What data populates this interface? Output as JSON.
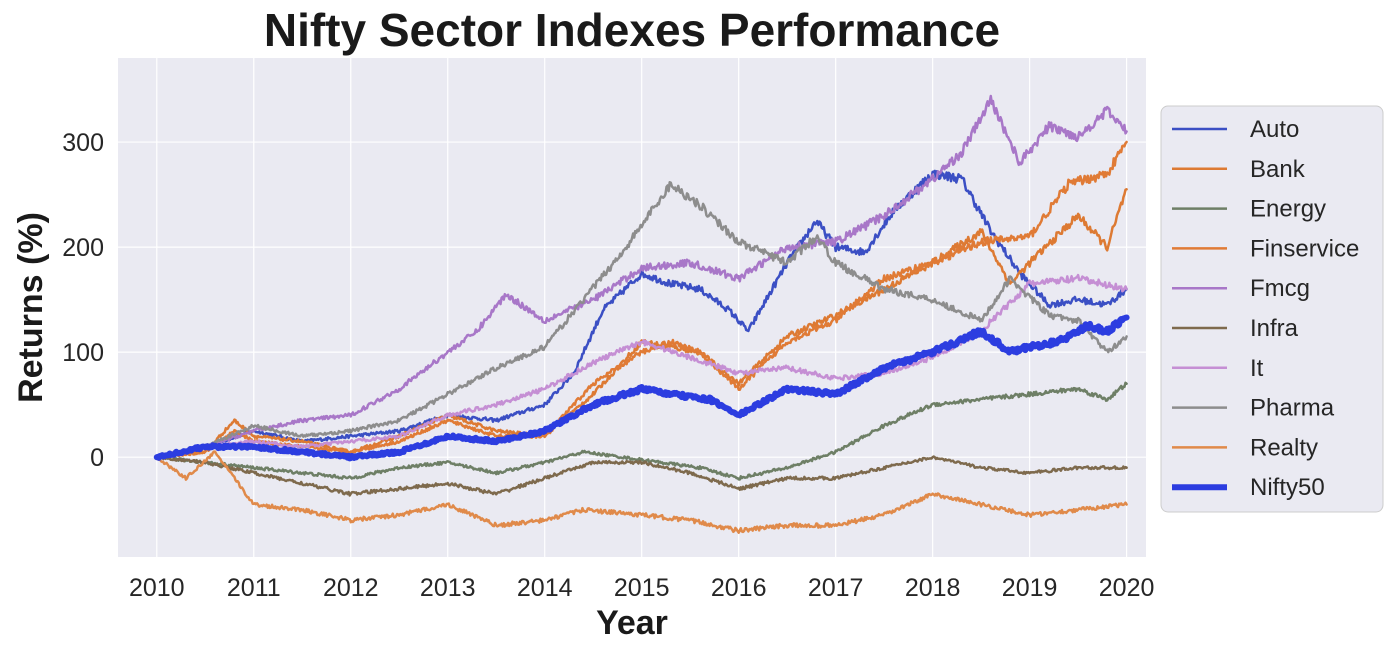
{
  "chart_data": {
    "type": "line",
    "title": "Nifty Sector Indexes Performance",
    "xlabel": "Year",
    "ylabel": "Returns (%)",
    "xlim": [
      2009.6,
      2020.2
    ],
    "ylim": [
      -95,
      380
    ],
    "x_ticks": [
      2010,
      2011,
      2012,
      2013,
      2014,
      2015,
      2016,
      2017,
      2018,
      2019,
      2020
    ],
    "x_tick_labels": [
      "2010",
      "2011",
      "2012",
      "2013",
      "2014",
      "2015",
      "2016",
      "2017",
      "2018",
      "2019",
      "2020"
    ],
    "y_ticks": [
      0,
      100,
      200,
      300
    ],
    "y_tick_labels": [
      "0",
      "100",
      "200",
      "300"
    ],
    "grid": true,
    "legend_position": "right",
    "series": [
      {
        "name": "Auto",
        "color": "#3b4fc4",
        "line_width": 2.5,
        "x": [
          2010,
          2010.5,
          2011,
          2011.5,
          2012,
          2012.5,
          2013,
          2013.5,
          2014,
          2014.3,
          2014.6,
          2015,
          2015.3,
          2015.6,
          2015.9,
          2016.1,
          2016.5,
          2016.8,
          2017,
          2017.3,
          2017.6,
          2018,
          2018.3,
          2018.6,
          2018.9,
          2019.2,
          2019.5,
          2019.8,
          2020
        ],
        "values": [
          0,
          10,
          25,
          15,
          20,
          25,
          40,
          35,
          50,
          80,
          140,
          175,
          165,
          160,
          140,
          120,
          185,
          225,
          200,
          195,
          235,
          270,
          265,
          215,
          175,
          145,
          150,
          145,
          160
        ]
      },
      {
        "name": "Bank",
        "color": "#dd7a33",
        "line_width": 2.5,
        "x": [
          2010,
          2010.5,
          2010.8,
          2011,
          2011.5,
          2012,
          2012.5,
          2013,
          2013.5,
          2014,
          2014.5,
          2015,
          2015.3,
          2015.6,
          2016,
          2016.5,
          2017,
          2017.5,
          2018,
          2018.5,
          2018.8,
          2019,
          2019.5,
          2019.8,
          2020
        ],
        "values": [
          0,
          5,
          35,
          20,
          15,
          5,
          20,
          40,
          25,
          20,
          60,
          110,
          105,
          100,
          70,
          115,
          135,
          160,
          185,
          215,
          165,
          185,
          230,
          200,
          255
        ]
      },
      {
        "name": "Energy",
        "color": "#6e7f66",
        "line_width": 2.5,
        "x": [
          2010,
          2010.5,
          2011,
          2011.5,
          2012,
          2012.5,
          2013,
          2013.5,
          2014,
          2014.4,
          2014.8,
          2015.2,
          2015.6,
          2016,
          2016.5,
          2017,
          2017.5,
          2018,
          2018.5,
          2019,
          2019.5,
          2019.8,
          2020
        ],
        "values": [
          0,
          -5,
          -10,
          -15,
          -20,
          -10,
          -5,
          -15,
          -5,
          5,
          0,
          -5,
          -10,
          -20,
          -10,
          5,
          30,
          50,
          55,
          60,
          65,
          55,
          70
        ]
      },
      {
        "name": "Finservice",
        "color": "#e07b36",
        "line_width": 2.5,
        "x": [
          2010,
          2010.5,
          2010.8,
          2011,
          2011.5,
          2012,
          2012.5,
          2013,
          2013.5,
          2014,
          2014.5,
          2015,
          2015.3,
          2015.6,
          2016,
          2016.5,
          2017,
          2017.5,
          2018,
          2018.5,
          2019,
          2019.4,
          2019.8,
          2020
        ],
        "values": [
          0,
          5,
          25,
          15,
          10,
          5,
          15,
          35,
          20,
          20,
          70,
          100,
          110,
          100,
          65,
          110,
          130,
          170,
          185,
          205,
          210,
          260,
          270,
          300
        ]
      },
      {
        "name": "Fmcg",
        "color": "#a877c8",
        "line_width": 2.5,
        "x": [
          2010,
          2010.5,
          2011,
          2011.5,
          2012,
          2012.5,
          2013,
          2013.3,
          2013.6,
          2014,
          2014.5,
          2015,
          2015.5,
          2016,
          2016.5,
          2017,
          2017.5,
          2018,
          2018.3,
          2018.6,
          2018.9,
          2019.2,
          2019.5,
          2019.8,
          2020
        ],
        "values": [
          0,
          10,
          25,
          35,
          40,
          65,
          100,
          120,
          155,
          130,
          150,
          180,
          185,
          170,
          200,
          205,
          230,
          265,
          290,
          340,
          280,
          315,
          305,
          330,
          310
        ]
      },
      {
        "name": "Infra",
        "color": "#7e6a4d",
        "line_width": 2.5,
        "x": [
          2010,
          2010.5,
          2011,
          2011.5,
          2012,
          2012.5,
          2013,
          2013.5,
          2014,
          2014.5,
          2015,
          2015.5,
          2016,
          2016.5,
          2017,
          2017.5,
          2018,
          2018.5,
          2019,
          2019.5,
          2020
        ],
        "values": [
          0,
          -5,
          -15,
          -25,
          -35,
          -30,
          -25,
          -35,
          -20,
          -5,
          -5,
          -15,
          -30,
          -20,
          -20,
          -10,
          0,
          -10,
          -15,
          -10,
          -10
        ]
      },
      {
        "name": "It",
        "color": "#c58fd4",
        "line_width": 2.5,
        "x": [
          2010,
          2010.5,
          2011,
          2011.5,
          2012,
          2012.5,
          2013,
          2013.5,
          2014,
          2014.5,
          2015,
          2015.5,
          2016,
          2016.5,
          2017,
          2017.5,
          2018,
          2018.5,
          2019,
          2019.5,
          2020
        ],
        "values": [
          0,
          10,
          15,
          10,
          15,
          20,
          40,
          50,
          65,
          90,
          110,
          95,
          80,
          85,
          75,
          80,
          95,
          120,
          165,
          170,
          160
        ]
      },
      {
        "name": "Pharma",
        "color": "#8d8d8d",
        "line_width": 2.5,
        "x": [
          2010,
          2010.5,
          2011,
          2011.5,
          2012,
          2012.5,
          2013,
          2013.5,
          2014,
          2014.4,
          2014.8,
          2015.3,
          2015.6,
          2016,
          2016.5,
          2016.8,
          2017,
          2017.5,
          2018,
          2018.5,
          2018.8,
          2019.2,
          2019.5,
          2019.8,
          2020
        ],
        "values": [
          0,
          10,
          30,
          20,
          25,
          35,
          60,
          85,
          105,
          150,
          195,
          260,
          240,
          205,
          185,
          210,
          185,
          160,
          150,
          130,
          170,
          135,
          130,
          100,
          115
        ]
      },
      {
        "name": "Realty",
        "color": "#e08a4a",
        "line_width": 2.5,
        "x": [
          2010,
          2010.3,
          2010.6,
          2011,
          2011.5,
          2012,
          2012.5,
          2013,
          2013.5,
          2014,
          2014.4,
          2015,
          2015.5,
          2016,
          2016.5,
          2017,
          2017.5,
          2018,
          2018.5,
          2019,
          2019.5,
          2020
        ],
        "values": [
          0,
          -20,
          5,
          -45,
          -50,
          -60,
          -55,
          -45,
          -65,
          -60,
          -50,
          -55,
          -60,
          -70,
          -65,
          -65,
          -55,
          -35,
          -45,
          -55,
          -50,
          -45
        ]
      },
      {
        "name": "Nifty50",
        "color": "#2c3de0",
        "line_width": 6,
        "x": [
          2010,
          2010.5,
          2011,
          2011.5,
          2012,
          2012.5,
          2013,
          2013.5,
          2014,
          2014.5,
          2015,
          2015.3,
          2015.7,
          2016,
          2016.5,
          2017,
          2017.5,
          2018,
          2018.5,
          2018.8,
          2019,
          2019.3,
          2019.6,
          2019.8,
          2020
        ],
        "values": [
          0,
          10,
          10,
          5,
          0,
          5,
          20,
          15,
          25,
          50,
          65,
          60,
          55,
          40,
          65,
          60,
          85,
          100,
          120,
          100,
          105,
          110,
          125,
          120,
          133
        ]
      }
    ]
  }
}
